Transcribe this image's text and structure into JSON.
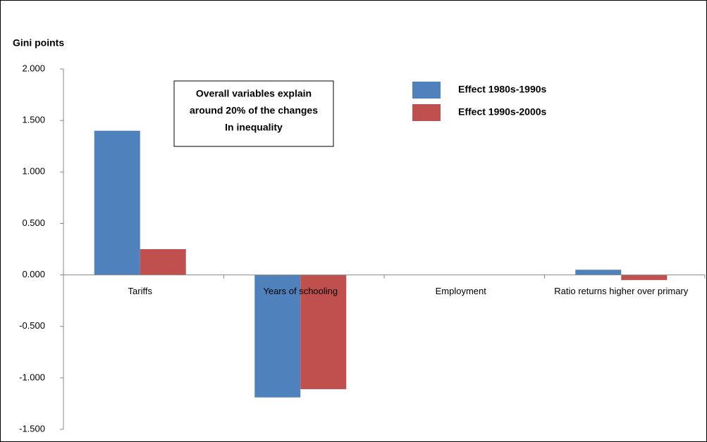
{
  "chart_data": {
    "type": "bar",
    "y_label": "Gini points",
    "categories": [
      "Tariffs",
      "Years of schooling",
      "Employment",
      "Ratio returns higher over primary"
    ],
    "series": [
      {
        "name": "Effect 1980s-1990s",
        "color": "#4f81bd",
        "values": [
          1.4,
          -1.19,
          0,
          0.05
        ]
      },
      {
        "name": "Effect 1990s-2000s",
        "color": "#c0504d",
        "values": [
          0.25,
          -1.11,
          0,
          -0.05
        ]
      }
    ],
    "ylim": [
      -1.5,
      2.0
    ],
    "yticks": [
      {
        "value": -1.5,
        "label": "-1.500"
      },
      {
        "value": -1.0,
        "label": "-1.000"
      },
      {
        "value": -0.5,
        "label": "-0.500"
      },
      {
        "value": 0,
        "label": "0.000"
      },
      {
        "value": 0.5,
        "label": "0.500"
      },
      {
        "value": 1.0,
        "label": "1.000"
      },
      {
        "value": 1.5,
        "label": "1.500"
      },
      {
        "value": 2.0,
        "label": "2.000"
      }
    ],
    "annotation": [
      "Overall variables explain",
      "around 20% of the changes",
      "In inequality"
    ],
    "grid": false
  }
}
